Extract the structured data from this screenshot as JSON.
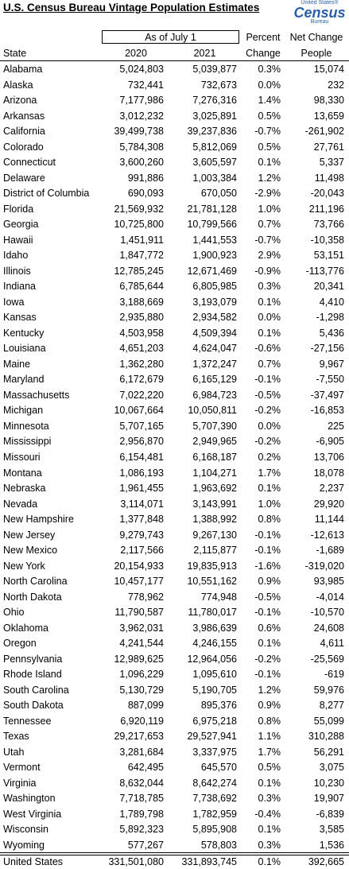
{
  "title": "U.S. Census Bureau Vintage Population Estimates",
  "logo": {
    "top": "United States®",
    "main": "Census",
    "bottom": "Bureau"
  },
  "header": {
    "group": "As of July 1",
    "percent": [
      "Percent",
      "Change"
    ],
    "net": [
      "Net Change",
      "People"
    ],
    "columns": [
      "State",
      "2020",
      "2021"
    ]
  },
  "table": {
    "rows": [
      [
        "Alabama",
        "5,024,803",
        "5,039,877",
        "0.3%",
        "15,074"
      ],
      [
        "Alaska",
        "732,441",
        "732,673",
        "0.0%",
        "232"
      ],
      [
        "Arizona",
        "7,177,986",
        "7,276,316",
        "1.4%",
        "98,330"
      ],
      [
        "Arkansas",
        "3,012,232",
        "3,025,891",
        "0.5%",
        "13,659"
      ],
      [
        "California",
        "39,499,738",
        "39,237,836",
        "-0.7%",
        "-261,902"
      ],
      [
        "Colorado",
        "5,784,308",
        "5,812,069",
        "0.5%",
        "27,761"
      ],
      [
        "Connecticut",
        "3,600,260",
        "3,605,597",
        "0.1%",
        "5,337"
      ],
      [
        "Delaware",
        "991,886",
        "1,003,384",
        "1.2%",
        "11,498"
      ],
      [
        "District of Columbia",
        "690,093",
        "670,050",
        "-2.9%",
        "-20,043"
      ],
      [
        "Florida",
        "21,569,932",
        "21,781,128",
        "1.0%",
        "211,196"
      ],
      [
        "Georgia",
        "10,725,800",
        "10,799,566",
        "0.7%",
        "73,766"
      ],
      [
        "Hawaii",
        "1,451,911",
        "1,441,553",
        "-0.7%",
        "-10,358"
      ],
      [
        "Idaho",
        "1,847,772",
        "1,900,923",
        "2.9%",
        "53,151"
      ],
      [
        "Illinois",
        "12,785,245",
        "12,671,469",
        "-0.9%",
        "-113,776"
      ],
      [
        "Indiana",
        "6,785,644",
        "6,805,985",
        "0.3%",
        "20,341"
      ],
      [
        "Iowa",
        "3,188,669",
        "3,193,079",
        "0.1%",
        "4,410"
      ],
      [
        "Kansas",
        "2,935,880",
        "2,934,582",
        "0.0%",
        "-1,298"
      ],
      [
        "Kentucky",
        "4,503,958",
        "4,509,394",
        "0.1%",
        "5,436"
      ],
      [
        "Louisiana",
        "4,651,203",
        "4,624,047",
        "-0.6%",
        "-27,156"
      ],
      [
        "Maine",
        "1,362,280",
        "1,372,247",
        "0.7%",
        "9,967"
      ],
      [
        "Maryland",
        "6,172,679",
        "6,165,129",
        "-0.1%",
        "-7,550"
      ],
      [
        "Massachusetts",
        "7,022,220",
        "6,984,723",
        "-0.5%",
        "-37,497"
      ],
      [
        "Michigan",
        "10,067,664",
        "10,050,811",
        "-0.2%",
        "-16,853"
      ],
      [
        "Minnesota",
        "5,707,165",
        "5,707,390",
        "0.0%",
        "225"
      ],
      [
        "Mississippi",
        "2,956,870",
        "2,949,965",
        "-0.2%",
        "-6,905"
      ],
      [
        "Missouri",
        "6,154,481",
        "6,168,187",
        "0.2%",
        "13,706"
      ],
      [
        "Montana",
        "1,086,193",
        "1,104,271",
        "1.7%",
        "18,078"
      ],
      [
        "Nebraska",
        "1,961,455",
        "1,963,692",
        "0.1%",
        "2,237"
      ],
      [
        "Nevada",
        "3,114,071",
        "3,143,991",
        "1.0%",
        "29,920"
      ],
      [
        "New Hampshire",
        "1,377,848",
        "1,388,992",
        "0.8%",
        "11,144"
      ],
      [
        "New Jersey",
        "9,279,743",
        "9,267,130",
        "-0.1%",
        "-12,613"
      ],
      [
        "New Mexico",
        "2,117,566",
        "2,115,877",
        "-0.1%",
        "-1,689"
      ],
      [
        "New York",
        "20,154,933",
        "19,835,913",
        "-1.6%",
        "-319,020"
      ],
      [
        "North Carolina",
        "10,457,177",
        "10,551,162",
        "0.9%",
        "93,985"
      ],
      [
        "North Dakota",
        "778,962",
        "774,948",
        "-0.5%",
        "-4,014"
      ],
      [
        "Ohio",
        "11,790,587",
        "11,780,017",
        "-0.1%",
        "-10,570"
      ],
      [
        "Oklahoma",
        "3,962,031",
        "3,986,639",
        "0.6%",
        "24,608"
      ],
      [
        "Oregon",
        "4,241,544",
        "4,246,155",
        "0.1%",
        "4,611"
      ],
      [
        "Pennsylvania",
        "12,989,625",
        "12,964,056",
        "-0.2%",
        "-25,569"
      ],
      [
        "Rhode Island",
        "1,096,229",
        "1,095,610",
        "-0.1%",
        "-619"
      ],
      [
        "South Carolina",
        "5,130,729",
        "5,190,705",
        "1.2%",
        "59,976"
      ],
      [
        "South Dakota",
        "887,099",
        "895,376",
        "0.9%",
        "8,277"
      ],
      [
        "Tennessee",
        "6,920,119",
        "6,975,218",
        "0.8%",
        "55,099"
      ],
      [
        "Texas",
        "29,217,653",
        "29,527,941",
        "1.1%",
        "310,288"
      ],
      [
        "Utah",
        "3,281,684",
        "3,337,975",
        "1.7%",
        "56,291"
      ],
      [
        "Vermont",
        "642,495",
        "645,570",
        "0.5%",
        "3,075"
      ],
      [
        "Virginia",
        "8,632,044",
        "8,642,274",
        "0.1%",
        "10,230"
      ],
      [
        "Washington",
        "7,718,785",
        "7,738,692",
        "0.3%",
        "19,907"
      ],
      [
        "West Virginia",
        "1,789,798",
        "1,782,959",
        "-0.4%",
        "-6,839"
      ],
      [
        "Wisconsin",
        "5,892,323",
        "5,895,908",
        "0.1%",
        "3,585"
      ],
      [
        "Wyoming",
        "577,267",
        "578,803",
        "0.3%",
        "1,536"
      ]
    ],
    "total": [
      "United States",
      "331,501,080",
      "331,893,745",
      "0.1%",
      "392,665"
    ]
  }
}
